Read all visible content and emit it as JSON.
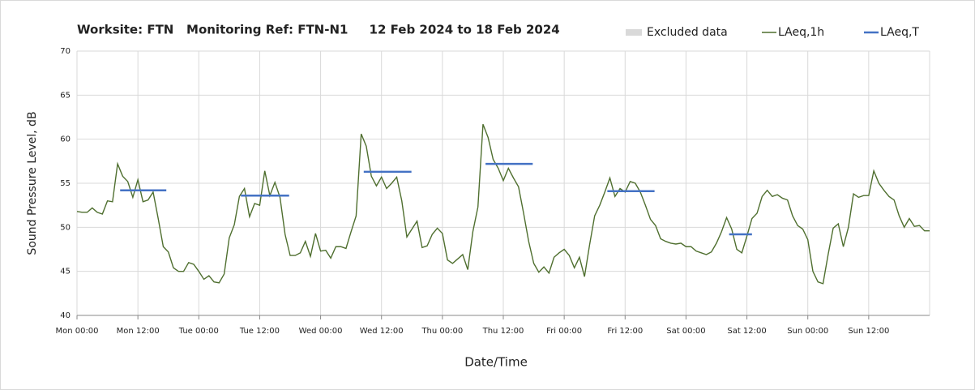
{
  "chart_data": {
    "type": "line",
    "title": "Worksite: FTN   Monitoring Ref: FTN-N1     12 Feb 2024 to 18 Feb 2024",
    "xlabel": "Date/Time",
    "ylabel": "Sound Pressure Level, dB",
    "xlim": [
      0,
      168
    ],
    "ylim": [
      40,
      70
    ],
    "yticks": [
      40,
      45,
      50,
      55,
      60,
      65,
      70
    ],
    "xticks": [
      {
        "value": 0,
        "label": "Mon 00:00"
      },
      {
        "value": 12,
        "label": "Mon 12:00"
      },
      {
        "value": 24,
        "label": "Tue 00:00"
      },
      {
        "value": 36,
        "label": "Tue 12:00"
      },
      {
        "value": 48,
        "label": "Wed 00:00"
      },
      {
        "value": 60,
        "label": "Wed 12:00"
      },
      {
        "value": 72,
        "label": "Thu 00:00"
      },
      {
        "value": 84,
        "label": "Thu 12:00"
      },
      {
        "value": 96,
        "label": "Fri 00:00"
      },
      {
        "value": 108,
        "label": "Fri 12:00"
      },
      {
        "value": 120,
        "label": "Sat 00:00"
      },
      {
        "value": 132,
        "label": "Sat 12:00"
      },
      {
        "value": 144,
        "label": "Sun 00:00"
      },
      {
        "value": 156,
        "label": "Sun 12:00"
      }
    ],
    "grid": true,
    "legend": "top-right",
    "excluded": {
      "name": "Excluded data",
      "color": "#d9d9d9"
    },
    "x": [
      0,
      1,
      2,
      3,
      4,
      5,
      6,
      7,
      8,
      9,
      10,
      11,
      12,
      13,
      14,
      15,
      16,
      17,
      18,
      19,
      20,
      21,
      22,
      23,
      24,
      25,
      26,
      27,
      28,
      29,
      30,
      31,
      32,
      33,
      34,
      35,
      36,
      37,
      38,
      39,
      40,
      41,
      42,
      43,
      44,
      45,
      46,
      47,
      48,
      49,
      50,
      51,
      52,
      53,
      54,
      55,
      56,
      57,
      58,
      59,
      60,
      61,
      62,
      63,
      64,
      65,
      66,
      67,
      68,
      69,
      70,
      71,
      72,
      73,
      74,
      75,
      76,
      77,
      78,
      79,
      80,
      81,
      82,
      83,
      84,
      85,
      86,
      87,
      88,
      89,
      90,
      91,
      92,
      93,
      94,
      95,
      96,
      97,
      98,
      99,
      100,
      101,
      102,
      103,
      104,
      105,
      106,
      107,
      108,
      109,
      110,
      111,
      112,
      113,
      114,
      115,
      116,
      117,
      118,
      119,
      120,
      121,
      122,
      123,
      124,
      125,
      126,
      127,
      128,
      129,
      130,
      131,
      132,
      133,
      134,
      135,
      136,
      137,
      138,
      139,
      140,
      141,
      142,
      143,
      144,
      145,
      146,
      147,
      148,
      149,
      150,
      151,
      152,
      153,
      154,
      155,
      156,
      157,
      158,
      159,
      160,
      161,
      162,
      163,
      164,
      165,
      166,
      167,
      168
    ],
    "series": [
      {
        "name": "LAeq,1h",
        "color": "#4f6f2f",
        "values": [
          51.8,
          51.7,
          51.7,
          52.2,
          51.7,
          51.5,
          53.0,
          52.9,
          57.2,
          55.8,
          55.2,
          53.4,
          55.4,
          52.9,
          53.1,
          54.0,
          51.0,
          47.8,
          47.2,
          45.4,
          45.0,
          45.0,
          46.0,
          45.8,
          45.0,
          44.1,
          44.5,
          43.8,
          43.7,
          44.7,
          48.8,
          50.3,
          53.5,
          54.4,
          51.2,
          52.7,
          52.5,
          56.4,
          53.6,
          55.1,
          53.4,
          49.2,
          46.8,
          46.8,
          47.1,
          48.4,
          46.7,
          49.3,
          47.3,
          47.4,
          46.5,
          47.8,
          47.8,
          47.6,
          49.5,
          51.3,
          60.6,
          59.2,
          55.8,
          54.7,
          55.7,
          54.4,
          55.0,
          55.7,
          53.0,
          48.9,
          49.8,
          50.7,
          47.7,
          47.9,
          49.2,
          49.9,
          49.3,
          46.3,
          45.9,
          46.4,
          46.9,
          45.2,
          49.5,
          52.3,
          61.7,
          60.2,
          57.7,
          56.7,
          55.3,
          56.7,
          55.6,
          54.6,
          51.6,
          48.4,
          45.9,
          44.9,
          45.5,
          44.8,
          46.6,
          47.1,
          47.5,
          46.8,
          45.4,
          46.6,
          44.4,
          48.0,
          51.3,
          52.5,
          54.0,
          55.6,
          53.5,
          54.4,
          54.0,
          55.2,
          55.0,
          54.0,
          52.5,
          50.9,
          50.2,
          48.7,
          48.4,
          48.2,
          48.1,
          48.2,
          47.8,
          47.8,
          47.3,
          47.1,
          46.9,
          47.2,
          48.2,
          49.5,
          51.1,
          49.8,
          47.5,
          47.1,
          49.0,
          51.0,
          51.6,
          53.5,
          54.2,
          53.5,
          53.7,
          53.3,
          53.1,
          51.3,
          50.2,
          49.8,
          48.6,
          45.0,
          43.8,
          43.6,
          46.9,
          49.9,
          50.4,
          47.8,
          50.0,
          53.8,
          53.4,
          53.6,
          53.6,
          56.4,
          55.0,
          54.2,
          53.5,
          53.1,
          51.3,
          50.0,
          51.0,
          50.1,
          50.2,
          49.6,
          49.6
        ]
      },
      {
        "name": "LAeq,T",
        "color": "#4472c4",
        "segments": [
          {
            "x": [
              8.5,
              17.6
            ],
            "value": 54.2
          },
          {
            "x": [
              32.3,
              41.8
            ],
            "value": 53.6
          },
          {
            "x": [
              56.5,
              65.9
            ],
            "value": 56.3
          },
          {
            "x": [
              80.5,
              89.8
            ],
            "value": 57.2
          },
          {
            "x": [
              104.5,
              113.8
            ],
            "value": 54.1
          },
          {
            "x": [
              128.5,
              133
            ],
            "value": 49.2
          }
        ]
      }
    ]
  }
}
